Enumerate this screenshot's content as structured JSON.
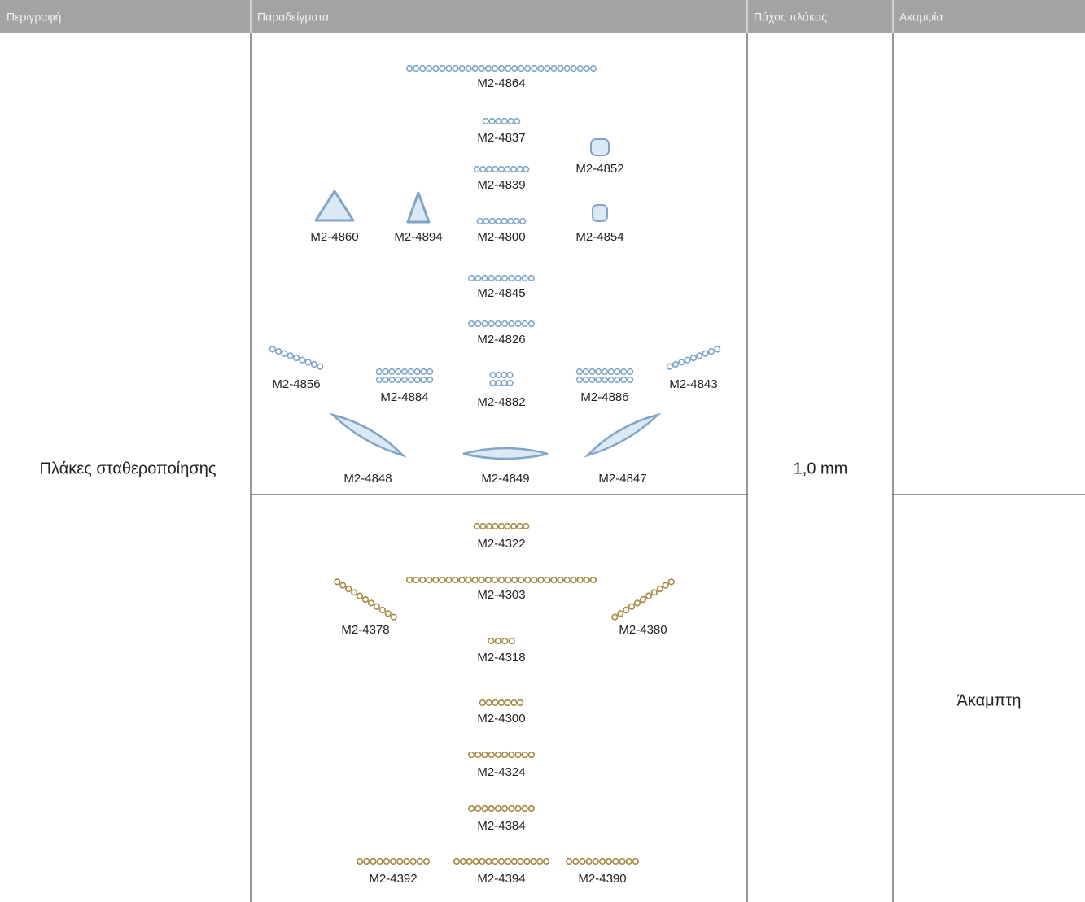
{
  "header": {
    "columns": [
      "Περιγραφή",
      "Παραδείγματα",
      "Πάχος πλάκας",
      "Ακαμψία"
    ]
  },
  "table": {
    "description": "Πλάκες σταθεροποίησης",
    "thickness": "1,0 mm",
    "rows": [
      {
        "rigidity": null,
        "examples": [
          "M2-4864",
          "M2-4837",
          "M2-4852",
          "M2-4839",
          "M2-4860",
          "M2-4894",
          "M2-4800",
          "M2-4854",
          "M2-4845",
          "M2-4826",
          "M2-4856",
          "M2-4884",
          "M2-4882",
          "M2-4886",
          "M2-4843",
          "M2-4848",
          "M2-4849",
          "M2-4847"
        ]
      },
      {
        "rigidity": "Άκαμπτη",
        "examples": [
          "M2-4322",
          "M2-4303",
          "M2-4378",
          "M2-4380",
          "M2-4318",
          "M2-4300",
          "M2-4324",
          "M2-4384",
          "M2-4392",
          "M2-4394",
          "M2-4390"
        ]
      }
    ]
  }
}
